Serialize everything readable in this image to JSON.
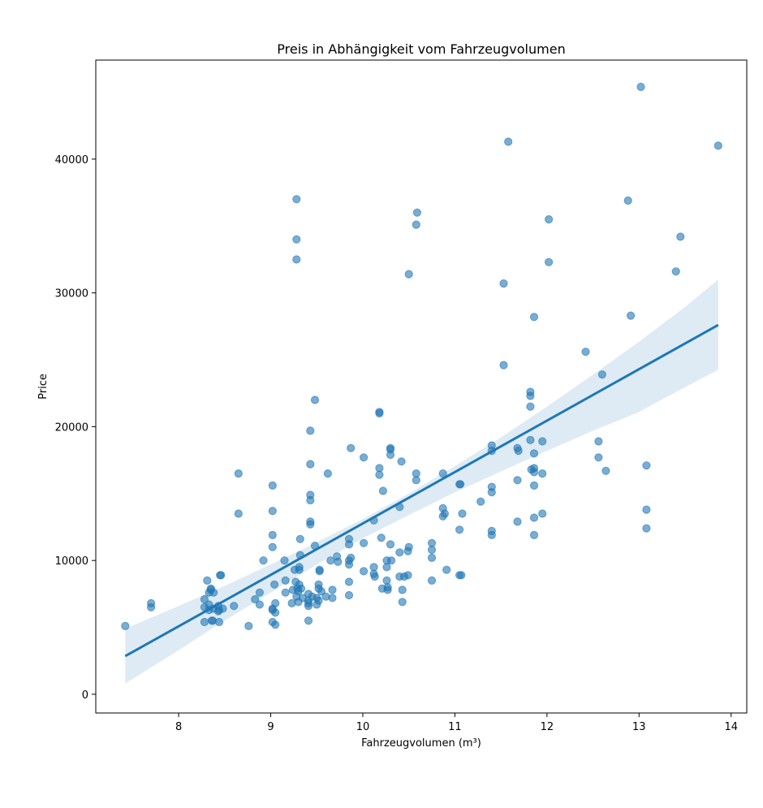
{
  "chart_data": {
    "type": "scatter",
    "title": "Preis in Abhängigkeit vom Fahrzeugvolumen",
    "xlabel": "Fahrzeugvolumen (m³)",
    "ylabel": "Price",
    "xlim": [
      7.1,
      14.17
    ],
    "ylim": [
      -1400,
      47400
    ],
    "xticks": [
      8,
      9,
      10,
      11,
      12,
      13,
      14
    ],
    "yticks": [
      0,
      10000,
      20000,
      30000,
      40000
    ],
    "grid": false,
    "legend": "none",
    "colors": {
      "points": "#1f77b4",
      "regression_line": "#1f77b4",
      "confidence_band": "#1f77b4"
    },
    "points": [
      [
        7.42,
        5100
      ],
      [
        7.7,
        6800
      ],
      [
        7.7,
        6500
      ],
      [
        8.28,
        7100
      ],
      [
        8.28,
        6500
      ],
      [
        8.28,
        5400
      ],
      [
        8.31,
        8500
      ],
      [
        8.33,
        7600
      ],
      [
        8.33,
        6700
      ],
      [
        8.33,
        6300
      ],
      [
        8.35,
        7800
      ],
      [
        8.35,
        7900
      ],
      [
        8.36,
        5500
      ],
      [
        8.37,
        5500
      ],
      [
        8.38,
        7600
      ],
      [
        8.38,
        6400
      ],
      [
        8.43,
        6600
      ],
      [
        8.43,
        6200
      ],
      [
        8.44,
        6300
      ],
      [
        8.44,
        5400
      ],
      [
        8.45,
        8900
      ],
      [
        8.46,
        8900
      ],
      [
        8.48,
        6400
      ],
      [
        8.6,
        6600
      ],
      [
        8.65,
        16500
      ],
      [
        8.65,
        13500
      ],
      [
        8.76,
        5100
      ],
      [
        8.83,
        7100
      ],
      [
        8.88,
        6700
      ],
      [
        8.88,
        7600
      ],
      [
        8.92,
        10000
      ],
      [
        9.02,
        15600
      ],
      [
        9.02,
        13700
      ],
      [
        9.02,
        11900
      ],
      [
        9.02,
        11000
      ],
      [
        9.02,
        6400
      ],
      [
        9.02,
        6300
      ],
      [
        9.02,
        5400
      ],
      [
        9.04,
        8200
      ],
      [
        9.05,
        6800
      ],
      [
        9.05,
        6100
      ],
      [
        9.05,
        5200
      ],
      [
        9.15,
        10000
      ],
      [
        9.16,
        8500
      ],
      [
        9.16,
        7600
      ],
      [
        9.23,
        6800
      ],
      [
        9.24,
        7800
      ],
      [
        9.26,
        9300
      ],
      [
        9.27,
        8400
      ],
      [
        9.28,
        37000
      ],
      [
        9.28,
        34000
      ],
      [
        9.28,
        32500
      ],
      [
        9.28,
        7300
      ],
      [
        9.29,
        7900
      ],
      [
        9.3,
        7700
      ],
      [
        9.3,
        6900
      ],
      [
        9.31,
        9500
      ],
      [
        9.31,
        9300
      ],
      [
        9.31,
        8200
      ],
      [
        9.32,
        11600
      ],
      [
        9.32,
        10400
      ],
      [
        9.33,
        7900
      ],
      [
        9.35,
        7200
      ],
      [
        9.41,
        7500
      ],
      [
        9.41,
        7000
      ],
      [
        9.41,
        6800
      ],
      [
        9.41,
        6600
      ],
      [
        9.41,
        5500
      ],
      [
        9.43,
        19700
      ],
      [
        9.43,
        17200
      ],
      [
        9.43,
        14900
      ],
      [
        9.43,
        14500
      ],
      [
        9.43,
        12900
      ],
      [
        9.43,
        12700
      ],
      [
        9.45,
        7300
      ],
      [
        9.48,
        22000
      ],
      [
        9.48,
        11100
      ],
      [
        9.5,
        7200
      ],
      [
        9.5,
        6700
      ],
      [
        9.52,
        8200
      ],
      [
        9.52,
        7900
      ],
      [
        9.52,
        7000
      ],
      [
        9.53,
        9300
      ],
      [
        9.53,
        9200
      ],
      [
        9.55,
        7700
      ],
      [
        9.6,
        7300
      ],
      [
        9.62,
        16500
      ],
      [
        9.65,
        10000
      ],
      [
        9.67,
        7200
      ],
      [
        9.67,
        7800
      ],
      [
        9.72,
        10300
      ],
      [
        9.73,
        9900
      ],
      [
        9.85,
        11600
      ],
      [
        9.85,
        11200
      ],
      [
        9.85,
        10000
      ],
      [
        9.85,
        9700
      ],
      [
        9.85,
        8400
      ],
      [
        9.85,
        7400
      ],
      [
        9.87,
        18400
      ],
      [
        9.87,
        10200
      ],
      [
        10.01,
        17700
      ],
      [
        10.01,
        11300
      ],
      [
        10.01,
        9200
      ],
      [
        10.12,
        13000
      ],
      [
        10.12,
        9500
      ],
      [
        10.12,
        9000
      ],
      [
        10.13,
        8800
      ],
      [
        10.18,
        21100
      ],
      [
        10.18,
        21000
      ],
      [
        10.18,
        16900
      ],
      [
        10.18,
        16400
      ],
      [
        10.2,
        11700
      ],
      [
        10.21,
        7900
      ],
      [
        10.22,
        15200
      ],
      [
        10.26,
        10000
      ],
      [
        10.26,
        9500
      ],
      [
        10.26,
        8500
      ],
      [
        10.27,
        8000
      ],
      [
        10.27,
        7800
      ],
      [
        10.3,
        18400
      ],
      [
        10.3,
        18300
      ],
      [
        10.3,
        17900
      ],
      [
        10.3,
        11200
      ],
      [
        10.31,
        10000
      ],
      [
        10.4,
        14000
      ],
      [
        10.4,
        10600
      ],
      [
        10.4,
        8800
      ],
      [
        10.42,
        17400
      ],
      [
        10.43,
        7800
      ],
      [
        10.43,
        6900
      ],
      [
        10.45,
        8800
      ],
      [
        10.49,
        10700
      ],
      [
        10.49,
        8900
      ],
      [
        10.5,
        11000
      ],
      [
        10.5,
        31400
      ],
      [
        10.58,
        35100
      ],
      [
        10.58,
        16500
      ],
      [
        10.59,
        36000
      ],
      [
        10.58,
        16000
      ],
      [
        10.75,
        11300
      ],
      [
        10.75,
        10800
      ],
      [
        10.75,
        10200
      ],
      [
        10.75,
        8500
      ],
      [
        10.87,
        16500
      ],
      [
        10.87,
        13900
      ],
      [
        10.87,
        13300
      ],
      [
        10.89,
        13500
      ],
      [
        10.91,
        9300
      ],
      [
        11.05,
        15700
      ],
      [
        11.05,
        12300
      ],
      [
        11.05,
        8900
      ],
      [
        11.06,
        15700
      ],
      [
        11.07,
        8900
      ],
      [
        11.08,
        13500
      ],
      [
        11.28,
        14400
      ],
      [
        11.4,
        18600
      ],
      [
        11.4,
        18200
      ],
      [
        11.4,
        15500
      ],
      [
        11.4,
        15100
      ],
      [
        11.4,
        12200
      ],
      [
        11.4,
        11900
      ],
      [
        11.53,
        30700
      ],
      [
        11.53,
        24600
      ],
      [
        11.58,
        41300
      ],
      [
        11.68,
        18400
      ],
      [
        11.68,
        16000
      ],
      [
        11.69,
        18200
      ],
      [
        11.68,
        12900
      ],
      [
        11.82,
        22600
      ],
      [
        11.82,
        22300
      ],
      [
        11.82,
        21500
      ],
      [
        11.82,
        19000
      ],
      [
        11.83,
        16800
      ],
      [
        11.86,
        28200
      ],
      [
        11.86,
        18000
      ],
      [
        11.86,
        16900
      ],
      [
        11.86,
        16600
      ],
      [
        11.86,
        15600
      ],
      [
        11.86,
        13200
      ],
      [
        11.86,
        11900
      ],
      [
        11.95,
        18900
      ],
      [
        11.95,
        16500
      ],
      [
        11.95,
        13500
      ],
      [
        12.02,
        35500
      ],
      [
        12.02,
        32300
      ],
      [
        12.42,
        25600
      ],
      [
        12.56,
        18900
      ],
      [
        12.56,
        17700
      ],
      [
        12.6,
        23900
      ],
      [
        12.64,
        16700
      ],
      [
        12.88,
        36900
      ],
      [
        12.91,
        28300
      ],
      [
        13.02,
        45400
      ],
      [
        13.08,
        17100
      ],
      [
        13.08,
        13800
      ],
      [
        13.08,
        12400
      ],
      [
        13.4,
        31600
      ],
      [
        13.45,
        34200
      ],
      [
        13.86,
        41000
      ]
    ],
    "regression": {
      "x": [
        7.42,
        13.86
      ],
      "y": [
        2850,
        27600
      ]
    },
    "confidence_band": {
      "x": [
        7.42,
        8.0,
        8.5,
        9.0,
        9.5,
        10.0,
        10.5,
        11.0,
        11.5,
        12.0,
        12.5,
        13.0,
        13.5,
        13.86
      ],
      "lower": [
        800,
        3300,
        5500,
        7600,
        9700,
        11650,
        13400,
        15100,
        16650,
        18200,
        19700,
        21100,
        22950,
        24250
      ],
      "upper": [
        4900,
        6600,
        8100,
        9700,
        11350,
        13100,
        15000,
        17050,
        19200,
        21500,
        23900,
        26350,
        28950,
        31000
      ]
    }
  }
}
